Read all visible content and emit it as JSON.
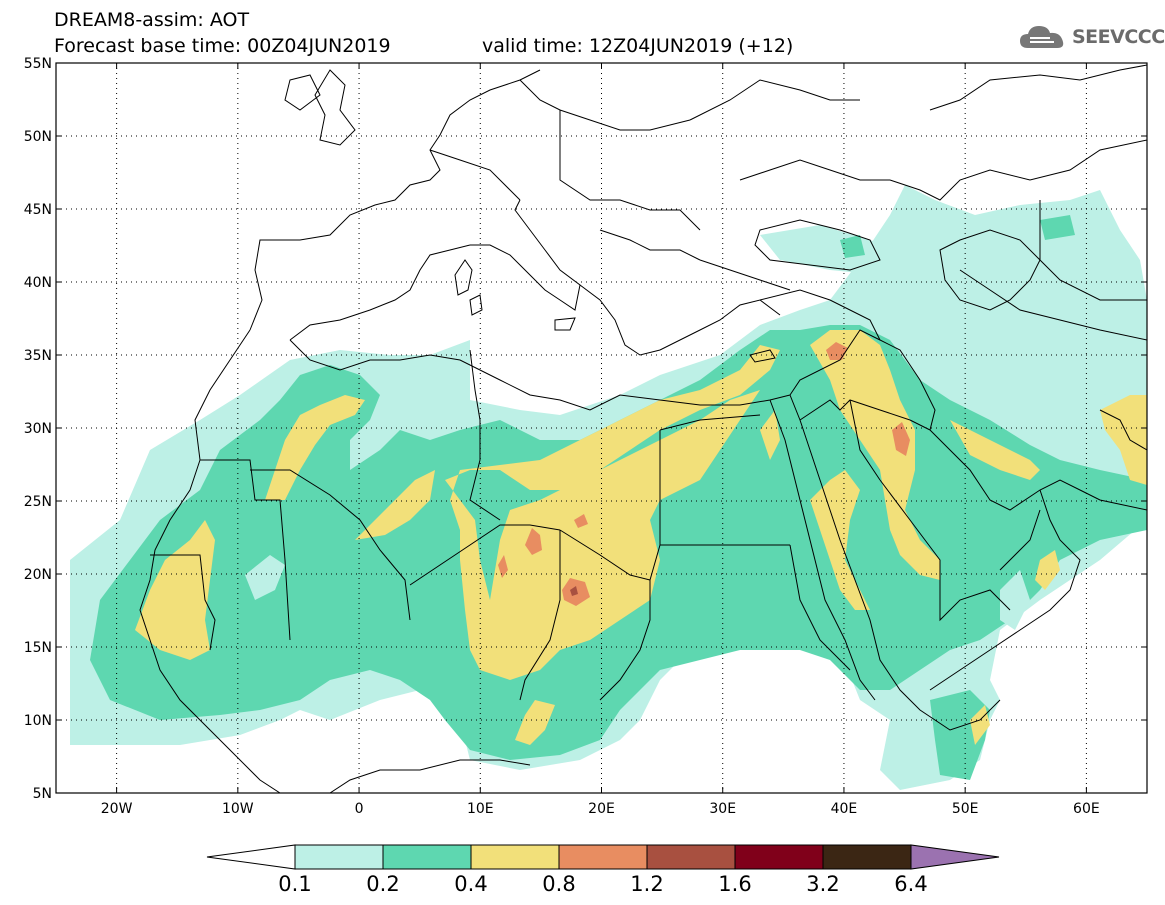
{
  "header": {
    "line1": "DREAM8-assim: AOT",
    "line2": "Forecast base time: 00Z04JUN2019",
    "line3": "valid time: 12Z04JUN2019 (+12)",
    "logo_text": "SEEVCCC",
    "logo_icon": "cloud-icon"
  },
  "map": {
    "lon_range": [
      -25,
      65
    ],
    "lat_range": [
      5,
      55
    ],
    "lat_labels": [
      "55N",
      "50N",
      "45N",
      "40N",
      "35N",
      "30N",
      "25N",
      "20N",
      "15N",
      "10N",
      "5N"
    ],
    "lon_labels": [
      "20W",
      "10W",
      "0",
      "10E",
      "20E",
      "30E",
      "40E",
      "50E",
      "60E"
    ],
    "grid": true
  },
  "legend": {
    "levels": [
      "0.1",
      "0.2",
      "0.4",
      "0.8",
      "1.2",
      "1.6",
      "3.2",
      "6.4"
    ],
    "colors": [
      "#ffffff",
      "#bdf0e6",
      "#5ed7b0",
      "#f2e07a",
      "#e88d61",
      "#a85040",
      "#80001a",
      "#3b2614",
      "#9b72b0"
    ]
  }
}
